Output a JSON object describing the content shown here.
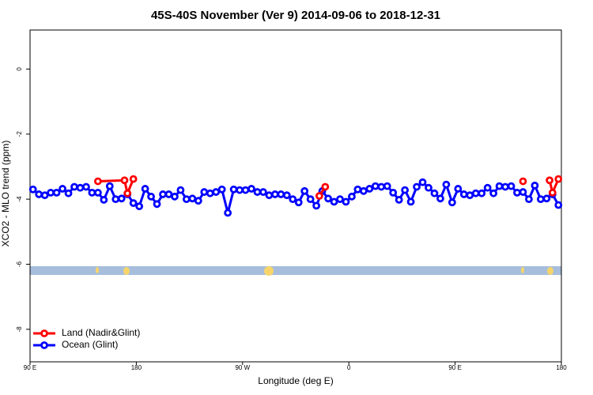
{
  "chart_data": {
    "type": "line",
    "title": "45S-40S November (Ver 9)   2014-09-06 to 2018-12-31",
    "x_label": "Longitude (deg E)",
    "y_label": "XCO2 - MLO trend (ppm)",
    "xlim": [
      90,
      540
    ],
    "ylim": [
      -9.0,
      1.2
    ],
    "xticks": [
      {
        "value": 90,
        "label": "90 E"
      },
      180,
      {
        "value": 270,
        "label": "90 W"
      },
      {
        "value": 360,
        "label": "0"
      },
      {
        "value": 450,
        "label": "90 E"
      },
      {
        "value": 540,
        "label": "180"
      }
    ],
    "yticks": [
      -8,
      -6,
      -4,
      -2,
      0
    ],
    "legend": "bottomleft",
    "series": [
      {
        "name": "Land (Nadir&Glint)",
        "color": "#ff0000",
        "x": [
          147.5,
          170,
          172.5,
          177.5,
          250,
          335,
          340,
          400,
          507.5,
          520,
          530,
          532.5,
          537.5
        ],
        "values": [
          -3.45,
          -3.42,
          -3.82,
          -3.38,
          null,
          -3.9,
          -3.62,
          null,
          -3.45,
          null,
          -3.42,
          -3.8,
          -3.38
        ]
      },
      {
        "name": "Ocean (Glint)",
        "color": "#0000ff",
        "x": [
          92.5,
          97.5,
          102.5,
          107.5,
          112.5,
          117.5,
          122.5,
          127.5,
          132.5,
          137.5,
          142.5,
          147.5,
          152.5,
          157.5,
          162.5,
          167.5,
          172.5,
          177.5,
          182.5,
          187.5,
          192.5,
          197.5,
          202.5,
          207.5,
          212.5,
          217.5,
          222.5,
          227.5,
          232.5,
          237.5,
          242.5,
          247.5,
          252.5,
          257.5,
          262.5,
          267.5,
          272.5,
          277.5,
          282.5,
          287.5,
          292.5,
          297.5,
          302.5,
          307.5,
          312.5,
          317.5,
          322.5,
          327.5,
          332.5,
          337.5,
          342.5,
          347.5,
          352.5,
          357.5,
          362.5,
          367.5,
          372.5,
          377.5,
          382.5,
          387.5,
          392.5,
          397.5,
          402.5,
          407.5,
          412.5,
          417.5,
          422.5,
          427.5,
          432.5,
          437.5,
          442.5,
          447.5,
          452.5,
          457.5,
          462.5,
          467.5,
          472.5,
          477.5,
          482.5,
          487.5,
          492.5,
          497.5,
          502.5,
          507.5,
          512.5,
          517.5,
          522.5,
          527.5,
          532.5,
          537.5
        ],
        "values": [
          -3.7,
          -3.85,
          -3.88,
          -3.8,
          -3.8,
          -3.68,
          -3.82,
          -3.62,
          -3.65,
          -3.62,
          -3.8,
          -3.8,
          -4.02,
          -3.6,
          -4.0,
          -3.98,
          -3.85,
          -4.12,
          -4.22,
          -3.68,
          -3.92,
          -4.15,
          -3.85,
          -3.85,
          -3.92,
          -3.72,
          -4.0,
          -3.98,
          -4.05,
          -3.78,
          -3.82,
          -3.78,
          -3.7,
          -4.42,
          -3.7,
          -3.72,
          -3.72,
          -3.68,
          -3.78,
          -3.78,
          -3.88,
          -3.85,
          -3.85,
          -3.88,
          -4.0,
          -4.1,
          -3.75,
          -4.0,
          -4.2,
          -3.75,
          -3.98,
          -4.08,
          -4.0,
          -4.08,
          -3.92,
          -3.7,
          -3.75,
          -3.68,
          -3.6,
          -3.62,
          -3.6,
          -3.8,
          -4.02,
          -3.72,
          -4.08,
          -3.62,
          -3.48,
          -3.65,
          -3.82,
          -3.98,
          -3.55,
          -4.1,
          -3.68,
          -3.85,
          -3.88,
          -3.82,
          -3.82,
          -3.65,
          -3.82,
          -3.6,
          -3.62,
          -3.6,
          -3.8,
          -3.78,
          -4.0,
          -3.58,
          -4.0,
          -3.98,
          -3.85,
          -4.18
        ]
      }
    ]
  }
}
